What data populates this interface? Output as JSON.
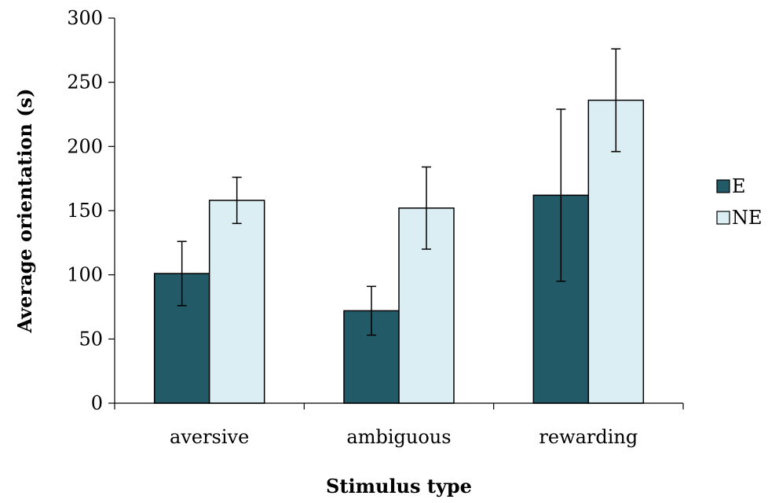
{
  "chart_data": {
    "type": "bar",
    "title": "",
    "xlabel": "Stimulus type",
    "ylabel": "Average orientation (s)",
    "ylim": [
      0,
      300
    ],
    "yticks": [
      0,
      50,
      100,
      150,
      200,
      250,
      300
    ],
    "categories": [
      "aversive",
      "ambiguous",
      "rewarding"
    ],
    "series": [
      {
        "name": "E",
        "color": "#235a68",
        "values": [
          101,
          72,
          162
        ],
        "error_low": [
          76,
          53,
          95
        ],
        "error_high": [
          126,
          91,
          229
        ]
      },
      {
        "name": "NE",
        "color": "#dbeef4",
        "values": [
          158,
          152,
          236
        ],
        "error_low": [
          140,
          120,
          196
        ],
        "error_high": [
          176,
          184,
          276
        ]
      }
    ],
    "grid": false,
    "legend_position": "right"
  }
}
